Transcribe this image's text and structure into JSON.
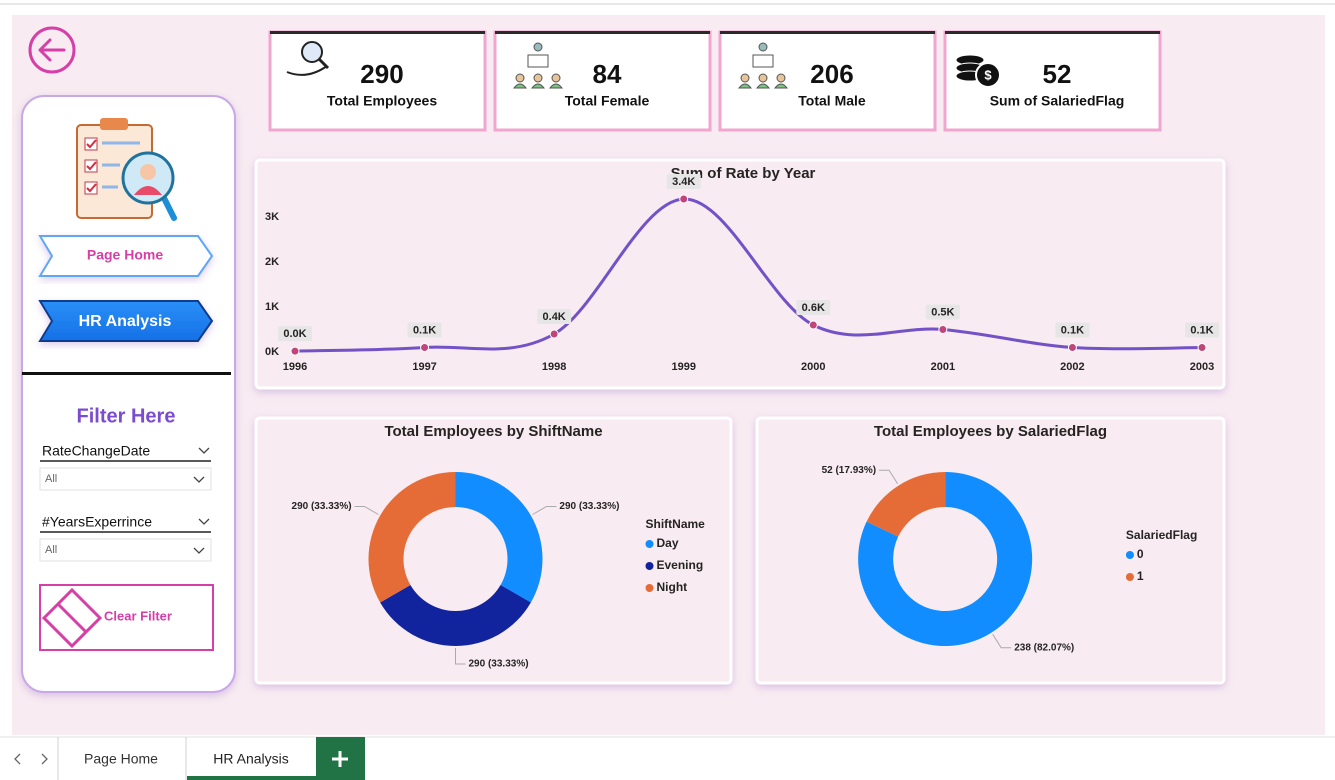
{
  "kpis": [
    {
      "value": "290",
      "label": "Total Employees"
    },
    {
      "value": "84",
      "label": "Total Female"
    },
    {
      "value": "206",
      "label": "Total Male"
    },
    {
      "value": "52",
      "label": "Sum of SalariedFlag"
    }
  ],
  "nav": [
    "Page Home",
    "HR Analysis"
  ],
  "filter": {
    "title": "Filter Here",
    "slicers": [
      {
        "label": "RateChangeDate",
        "value": "All"
      },
      {
        "label": "#YearsExperrince",
        "value": "All"
      }
    ],
    "clear": "Clear Filter"
  },
  "tabs": [
    "Page Home",
    "HR Analysis"
  ],
  "chart_data": [
    {
      "type": "line",
      "title": "Sum of Rate by Year",
      "categories": [
        "1996",
        "1997",
        "1998",
        "1999",
        "2000",
        "2001",
        "2002",
        "2003"
      ],
      "values": [
        20,
        100,
        400,
        3400,
        600,
        500,
        100,
        100
      ],
      "value_labels": [
        "0.0K",
        "0.1K",
        "0.4K",
        "3.4K",
        "0.6K",
        "0.5K",
        "0.1K",
        "0.1K"
      ],
      "color": "#7352c7",
      "marker_color": "#c0457a",
      "ylim": [
        0,
        3600
      ],
      "yticks": [
        {
          "value": 0,
          "label": "0K"
        },
        {
          "value": 1000,
          "label": "1K"
        },
        {
          "value": 2000,
          "label": "2K"
        },
        {
          "value": 3000,
          "label": "3K"
        }
      ]
    },
    {
      "type": "pie",
      "title": "Total Employees by ShiftName",
      "legend_title": "ShiftName",
      "categories": [
        "Day",
        "Evening",
        "Night"
      ],
      "values": [
        290,
        290,
        290
      ],
      "value_labels": [
        "290 (33.33%)",
        "290 (33.33%)",
        "290 (33.33%)"
      ],
      "colors": [
        "#118dff",
        "#12239e",
        "#e66c37"
      ]
    },
    {
      "type": "pie",
      "title": "Total Employees by SalariedFlag",
      "legend_title": "SalariedFlag",
      "categories": [
        "0",
        "1"
      ],
      "values": [
        238,
        52
      ],
      "value_labels": [
        "238 (82.07%)",
        "52 (17.93%)"
      ],
      "colors": [
        "#118dff",
        "#e66c37"
      ]
    }
  ]
}
